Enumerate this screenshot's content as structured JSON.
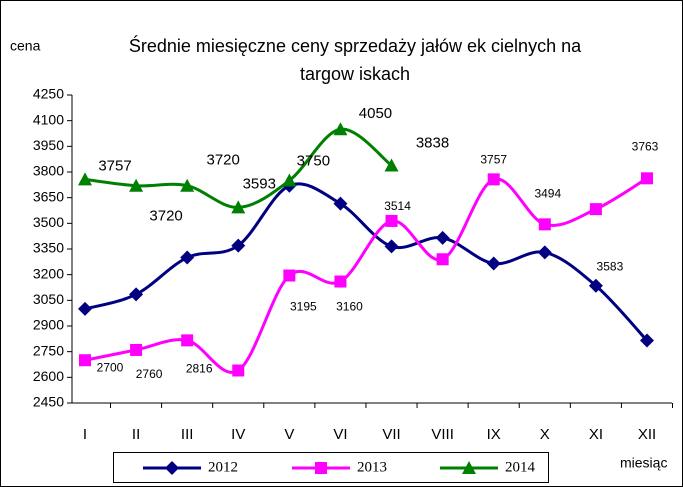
{
  "chart_data": {
    "type": "line",
    "title": [
      "Średnie miesięczne ceny sprzedaży jałów ek cielnych na",
      "targow iskach"
    ],
    "y_label": "cena",
    "x_label": "miesiąc",
    "categories": [
      "I",
      "II",
      "III",
      "IV",
      "V",
      "VI",
      "VII",
      "VIII",
      "IX",
      "X",
      "XI",
      "XII"
    ],
    "ylim": [
      2450,
      4250
    ],
    "yticks": [
      2450,
      2600,
      2750,
      2900,
      3050,
      3200,
      3350,
      3500,
      3650,
      3800,
      3950,
      4100,
      4250
    ],
    "series": [
      {
        "name": "2012",
        "color": "#000080",
        "marker": "diamond",
        "values": [
          3000,
          3085,
          3300,
          3370,
          3720,
          3615,
          3365,
          3415,
          3265,
          3330,
          3135,
          2815
        ]
      },
      {
        "name": "2013",
        "color": "#ff00ff",
        "marker": "square",
        "values": [
          2700,
          2760,
          2816,
          2640,
          3195,
          3160,
          3514,
          3290,
          3757,
          3494,
          3583,
          3763
        ],
        "value_labels": [
          "2700",
          "2760",
          "2816",
          null,
          "3195",
          "3160",
          "3514",
          null,
          "3757",
          "3494",
          "3583",
          "3763"
        ]
      },
      {
        "name": "2014",
        "color": "#008000",
        "marker": "triangle",
        "values": [
          3757,
          3720,
          3720,
          3593,
          3750,
          4050,
          3838,
          null,
          null,
          null,
          null,
          null
        ],
        "value_labels": [
          "3757",
          "3720",
          "3720",
          "3593",
          "3750",
          "4050",
          "3838",
          null,
          null,
          null,
          null,
          null
        ]
      }
    ]
  }
}
